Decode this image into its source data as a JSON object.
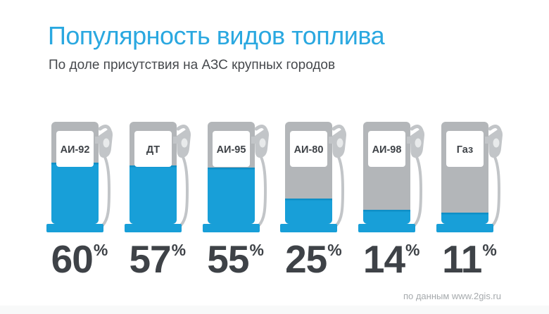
{
  "header": {
    "title": "Популярность видов топлива",
    "subtitle": "По доле присутствия на АЗС крупных городов"
  },
  "footer": {
    "source": "по данным www.2gis.ru"
  },
  "colors": {
    "title_blue": "#2AA8E0",
    "fill_blue": "#189FD8",
    "fill_blue_dark": "#0F8FC6",
    "pump_gray": "#B3B6B9",
    "hose_gray": "#C2C5C8",
    "nozzle_hole": "#E8EAEB",
    "text_dark": "#3E4247",
    "subtitle_gray": "#46494D",
    "credit_gray": "#A6AAAD",
    "bottom_strip": "#F8F9F9"
  },
  "chart_data": {
    "type": "bar",
    "style": "pictogram-fuel-pumps",
    "categories": [
      "АИ-92",
      "ДТ",
      "АИ-95",
      "АИ-80",
      "АИ-98",
      "Газ"
    ],
    "values": [
      60,
      57,
      55,
      25,
      14,
      11
    ],
    "unit": "%",
    "title": "Популярность видов топлива",
    "subtitle": "По доле присутствия на АЗС крупных городов",
    "source": "по данным www.2gis.ru",
    "ylim": [
      0,
      100
    ],
    "grid": false,
    "legend": false
  }
}
